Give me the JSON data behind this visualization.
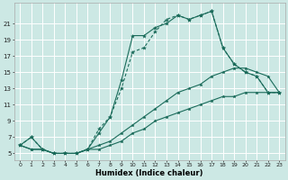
{
  "xlabel": "Humidex (Indice chaleur)",
  "background_color": "#cce8e4",
  "grid_color": "#ffffff",
  "line_color": "#1a6b5a",
  "hours": [
    0,
    1,
    2,
    3,
    4,
    5,
    6,
    7,
    8,
    9,
    10,
    11,
    12,
    13,
    14,
    15,
    16,
    17,
    18,
    19,
    20,
    21,
    22,
    23
  ],
  "series1": [
    6.0,
    7.0,
    5.5,
    5.0,
    5.0,
    5.0,
    5.5,
    7.5,
    9.5,
    14.0,
    19.5,
    19.5,
    20.5,
    21.0,
    22.0,
    21.5,
    22.0,
    22.5,
    18.0,
    16.0,
    15.0,
    14.5,
    12.5,
    12.5
  ],
  "series2": [
    6.0,
    7.0,
    5.5,
    5.0,
    5.0,
    5.0,
    5.5,
    8.0,
    9.5,
    13.0,
    17.5,
    18.0,
    20.0,
    21.5,
    22.0,
    21.5,
    22.0,
    22.5,
    18.0,
    16.0,
    15.0,
    14.5,
    12.5,
    12.5
  ],
  "series3": [
    6.0,
    5.5,
    5.5,
    5.0,
    5.0,
    5.0,
    5.5,
    6.0,
    6.5,
    7.5,
    8.5,
    9.5,
    10.5,
    11.5,
    12.5,
    13.0,
    13.5,
    14.5,
    15.0,
    15.5,
    15.5,
    15.0,
    14.5,
    12.5
  ],
  "series4": [
    6.0,
    5.5,
    5.5,
    5.0,
    5.0,
    5.0,
    5.5,
    5.5,
    6.0,
    6.5,
    7.5,
    8.0,
    9.0,
    9.5,
    10.0,
    10.5,
    11.0,
    11.5,
    12.0,
    12.0,
    12.5,
    12.5,
    12.5,
    12.5
  ],
  "yticks": [
    5,
    7,
    9,
    11,
    13,
    15,
    17,
    19,
    21
  ],
  "xtick_labels": [
    "0",
    "1",
    "2",
    "3",
    "4",
    "5",
    "6",
    "7",
    "8",
    "9",
    "10",
    "11",
    "12",
    "13",
    "14",
    "15",
    "16",
    "17",
    "18",
    "19",
    "20",
    "21",
    "22",
    "23"
  ],
  "ylim": [
    4.2,
    23.5
  ],
  "xlim": [
    -0.5,
    23.5
  ]
}
